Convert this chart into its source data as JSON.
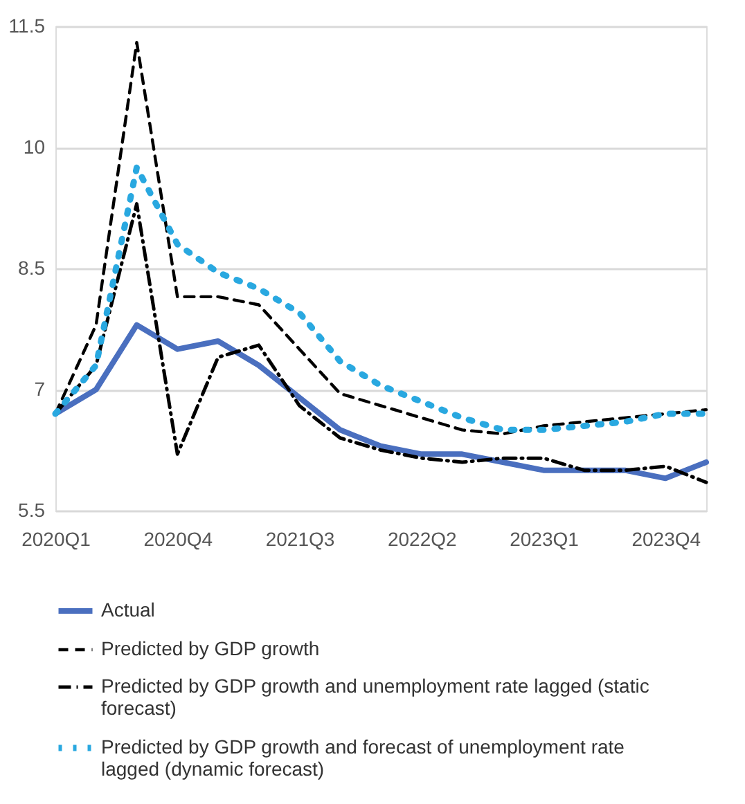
{
  "chart_data": {
    "type": "line",
    "categories": [
      "2020Q1",
      null,
      null,
      "2020Q4",
      null,
      null,
      "2021Q3",
      null,
      null,
      "2022Q2",
      null,
      null,
      "2023Q1",
      null,
      null,
      "2023Q4",
      null
    ],
    "series": [
      {
        "name": "Actual",
        "color": "#4a6fbf",
        "line_style": "solid",
        "values": [
          6.7,
          7.0,
          7.8,
          7.5,
          7.6,
          7.3,
          6.9,
          6.5,
          6.3,
          6.2,
          6.2,
          6.1,
          6.0,
          6.0,
          6.0,
          5.9,
          6.1
        ]
      },
      {
        "name": "Predicted by GDP growth",
        "color": "#000000",
        "line_style": "dashed",
        "values": [
          6.7,
          7.8,
          11.3,
          8.15,
          8.15,
          8.05,
          7.5,
          6.95,
          6.8,
          6.65,
          6.5,
          6.45,
          6.55,
          6.6,
          6.65,
          6.7,
          6.75
        ]
      },
      {
        "name": "Predicted by GDP growth and unemployment rate lagged (static forecast)",
        "color": "#000000",
        "line_style": "dashdot",
        "values": [
          6.7,
          7.3,
          9.3,
          6.2,
          7.4,
          7.55,
          6.8,
          6.4,
          6.25,
          6.15,
          6.1,
          6.15,
          6.15,
          6.0,
          6.0,
          6.05,
          5.85
        ]
      },
      {
        "name": "Predicted by GDP growth and forecast of unemployment rate lagged (dynamic forecast)",
        "color": "#29a8e0",
        "line_style": "dotted",
        "values": [
          6.7,
          7.3,
          9.75,
          8.8,
          8.45,
          8.25,
          7.95,
          7.35,
          7.05,
          6.85,
          6.65,
          6.5,
          6.5,
          6.55,
          6.6,
          6.7,
          6.7
        ]
      }
    ],
    "ylim": [
      5.5,
      11.5
    ],
    "yticks": [
      5.5,
      7,
      8.5,
      10,
      11.5
    ],
    "grid": "y",
    "legend": "bottom",
    "marker": "none"
  }
}
